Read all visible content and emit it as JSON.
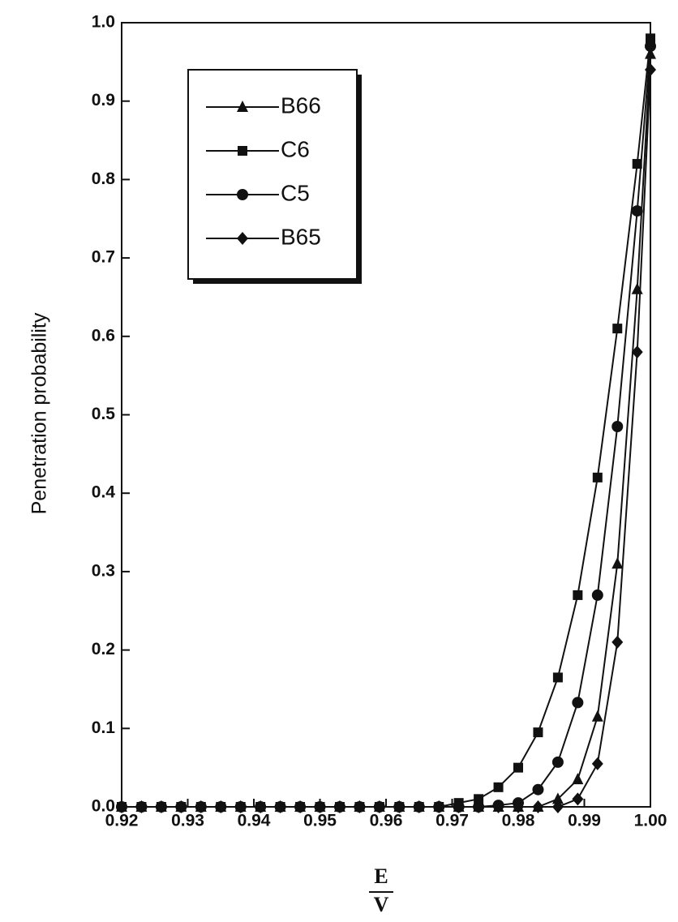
{
  "chart_data": {
    "type": "line",
    "ylabel": "Penetration probability",
    "xlabel_numerator": "E",
    "xlabel_denominator": "V",
    "x": [
      0.92,
      0.923,
      0.926,
      0.929,
      0.932,
      0.935,
      0.938,
      0.941,
      0.944,
      0.947,
      0.95,
      0.953,
      0.956,
      0.959,
      0.962,
      0.965,
      0.968,
      0.971,
      0.974,
      0.977,
      0.98,
      0.983,
      0.986,
      0.989,
      0.992,
      0.995,
      0.998,
      1.0
    ],
    "series": [
      {
        "name": "B66",
        "color": "#111111",
        "marker": "triangle",
        "values": [
          0,
          0,
          0,
          0,
          0,
          0,
          0,
          0,
          0,
          0,
          0,
          0,
          0,
          0,
          0,
          0,
          0,
          0,
          0,
          0,
          0,
          0,
          0.01,
          0.035,
          0.115,
          0.31,
          0.66,
          0.96
        ]
      },
      {
        "name": "C6",
        "color": "#111111",
        "marker": "square",
        "values": [
          0,
          0,
          0,
          0,
          0,
          0,
          0,
          0,
          0,
          0,
          0,
          0,
          0,
          0,
          0,
          0,
          0,
          0.005,
          0.01,
          0.025,
          0.05,
          0.095,
          0.165,
          0.27,
          0.42,
          0.61,
          0.82,
          0.98
        ]
      },
      {
        "name": "C5",
        "color": "#111111",
        "marker": "circle",
        "values": [
          0,
          0,
          0,
          0,
          0,
          0,
          0,
          0,
          0,
          0,
          0,
          0,
          0,
          0,
          0,
          0,
          0,
          0,
          0,
          0.002,
          0.005,
          0.022,
          0.057,
          0.133,
          0.27,
          0.485,
          0.76,
          0.97
        ]
      },
      {
        "name": "B65",
        "color": "#111111",
        "marker": "diamond",
        "values": [
          0,
          0,
          0,
          0,
          0,
          0,
          0,
          0,
          0,
          0,
          0,
          0,
          0,
          0,
          0,
          0,
          0,
          0,
          0,
          0,
          0,
          0,
          0,
          0.01,
          0.055,
          0.21,
          0.58,
          0.94
        ]
      }
    ],
    "xlim": [
      0.92,
      1.0
    ],
    "xticks": [
      0.92,
      0.93,
      0.94,
      0.95,
      0.96,
      0.97,
      0.98,
      0.99,
      {
        "value": 1.0,
        "label": "1.00"
      }
    ],
    "ylim": [
      0,
      1.0
    ],
    "yticks": [
      {
        "value": 0,
        "label": "0.0"
      },
      0.1,
      0.2,
      0.3,
      0.4,
      0.5,
      0.6,
      0.7,
      0.8,
      0.9,
      {
        "value": 1.0,
        "label": "1.0"
      }
    ],
    "legend": "upper-left",
    "grid": false
  }
}
